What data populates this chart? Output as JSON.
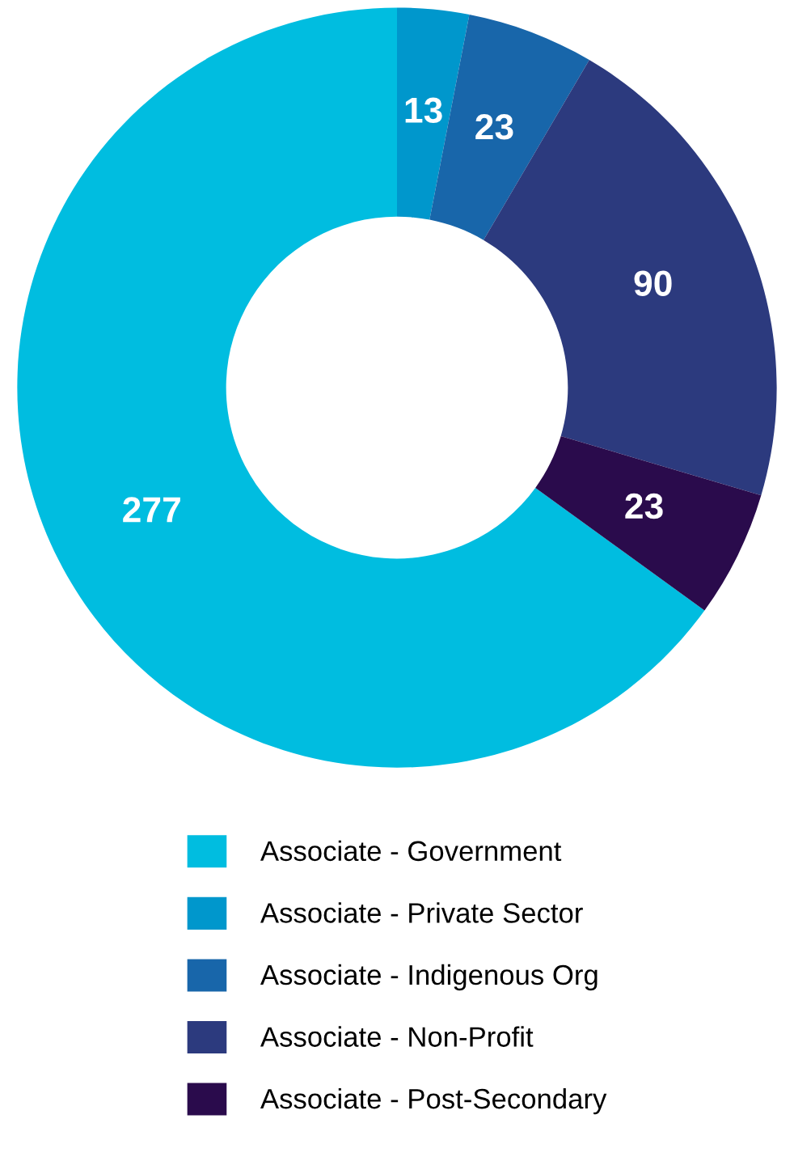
{
  "chart_data": {
    "type": "donut",
    "categories": [
      "Associate - Government",
      "Associate - Private Sector",
      "Associate - Indigenous Org",
      "Associate - Non-Profit",
      "Associate - Post-Secondary"
    ],
    "values": [
      277,
      13,
      23,
      90,
      23
    ],
    "colors": [
      "#00bde0",
      "#0097cc",
      "#1866aa",
      "#2c3a7e",
      "#2a0b4c"
    ],
    "data_labels": true,
    "legend": "bottom"
  }
}
